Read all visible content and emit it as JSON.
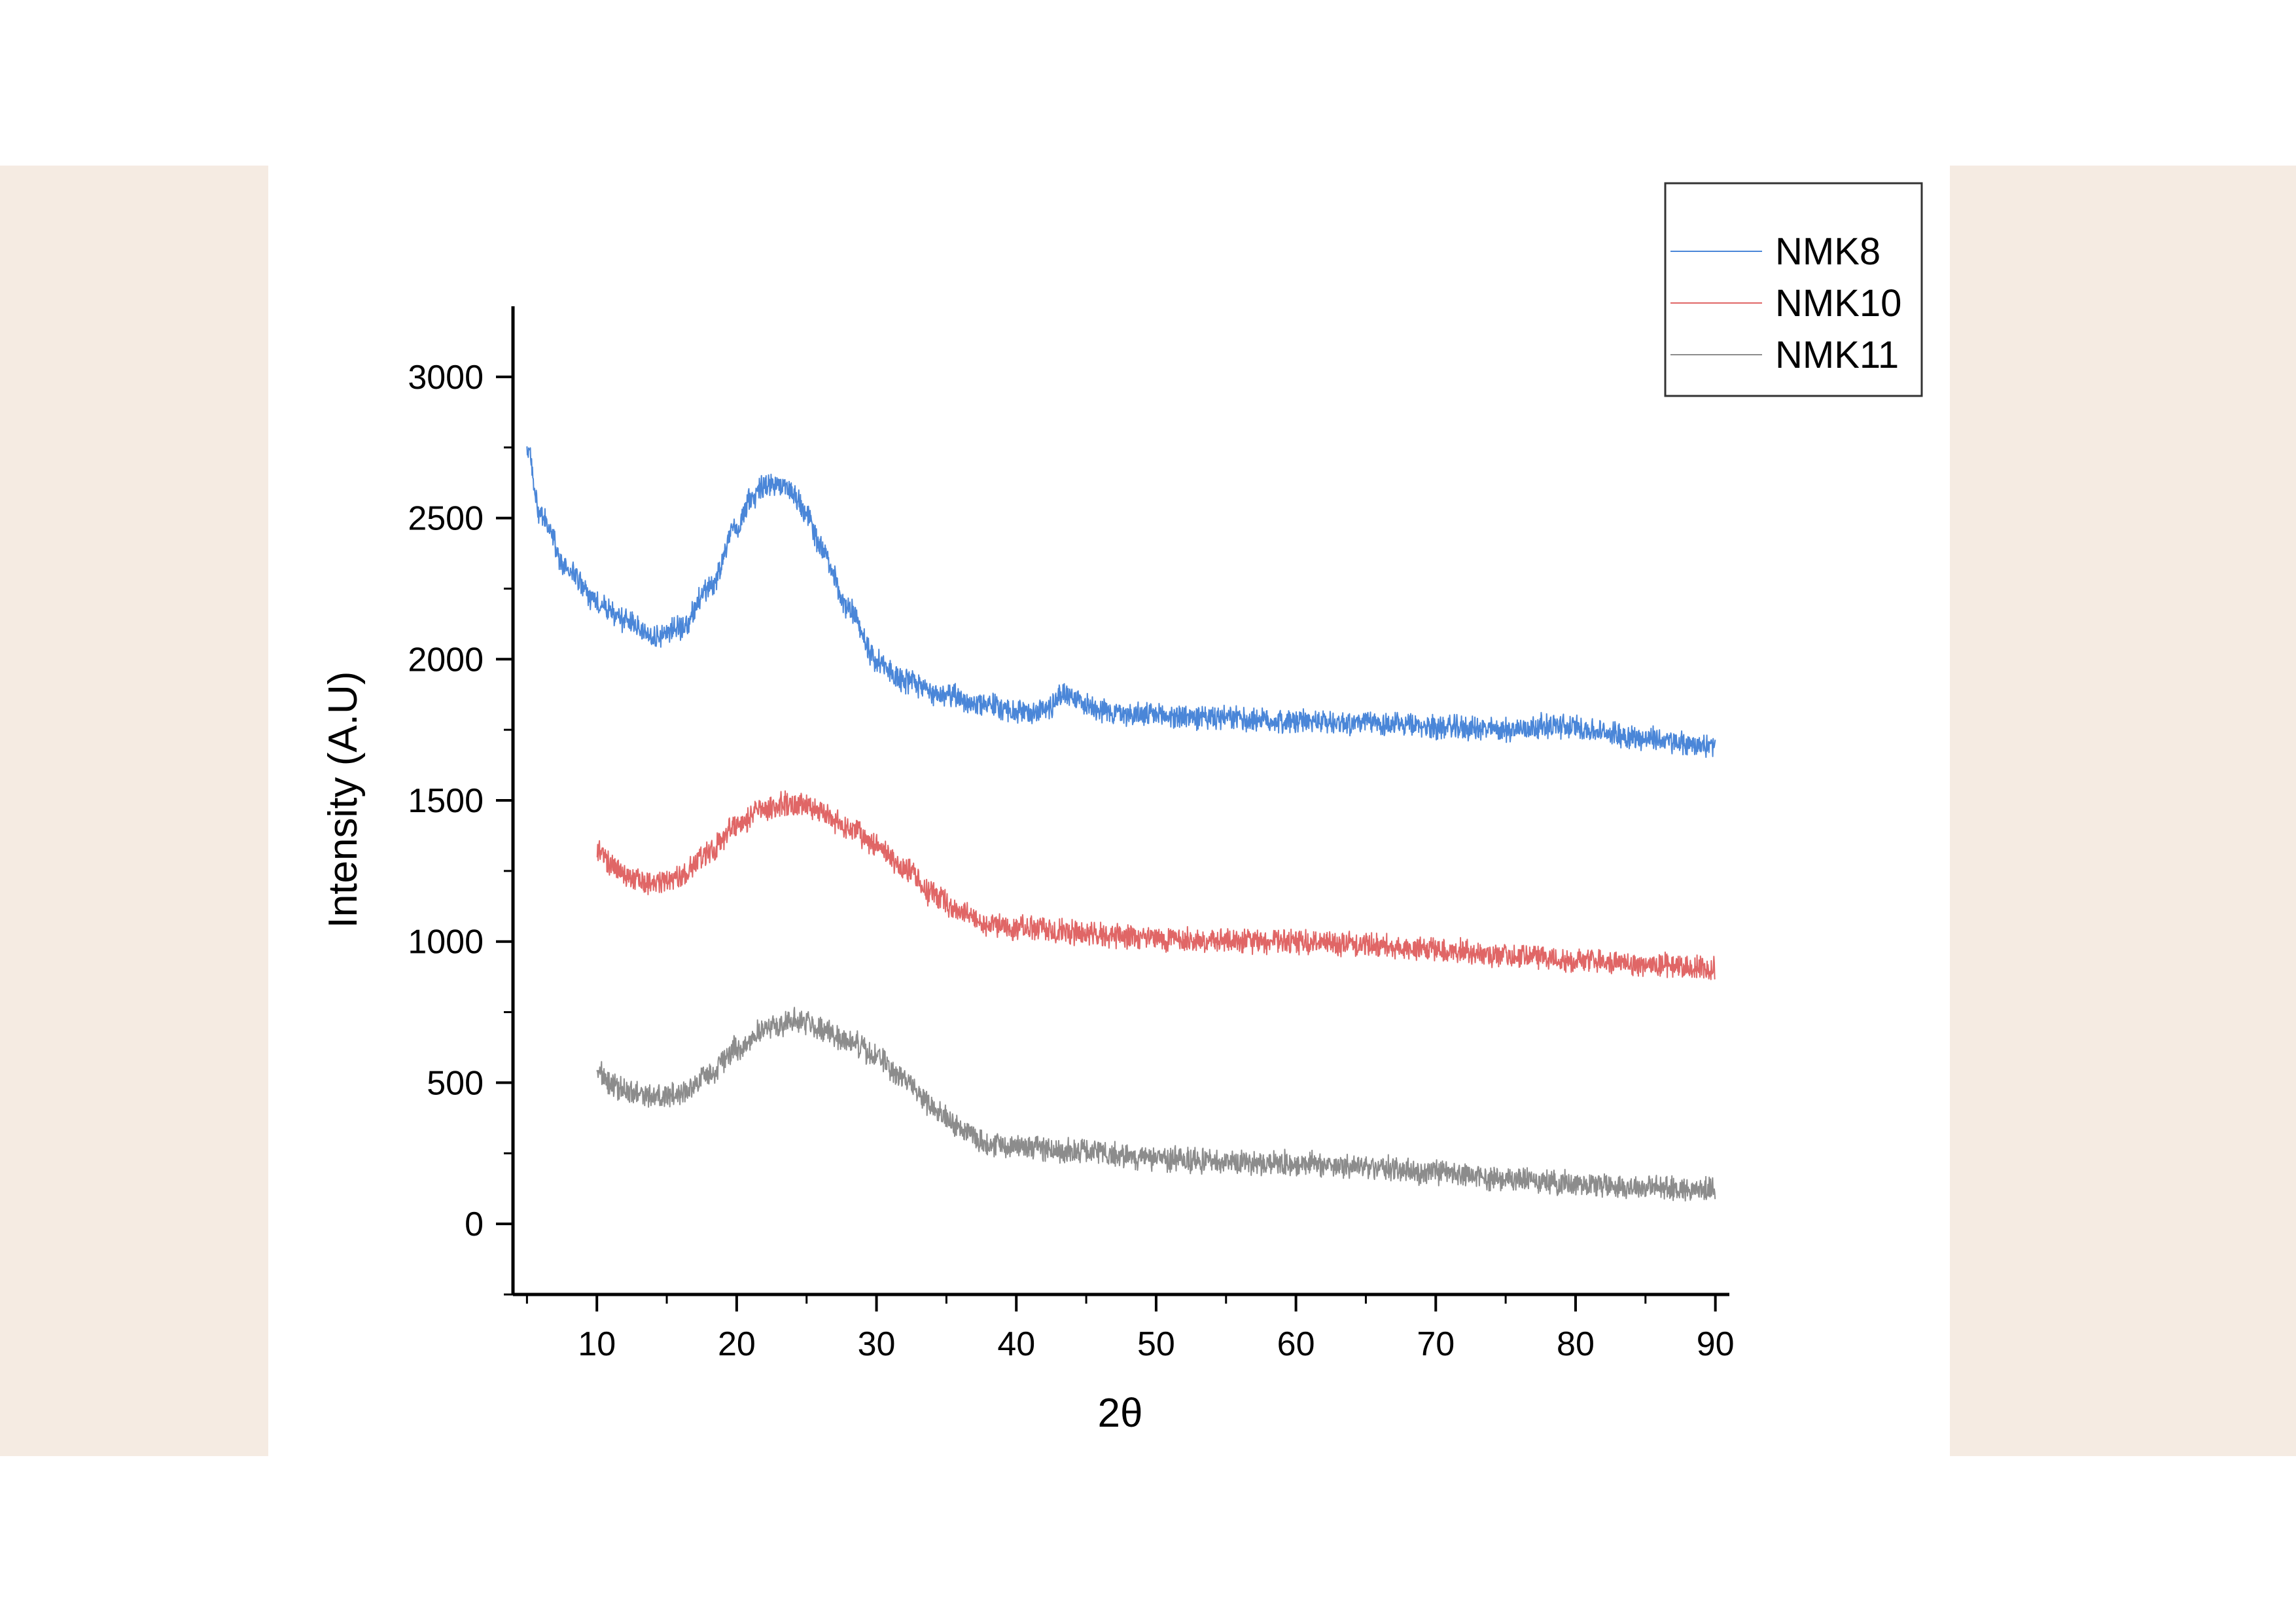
{
  "chart_data": {
    "type": "line",
    "title": "",
    "xlabel": "2θ",
    "ylabel": "Intensity (A.U)",
    "xlim": [
      4,
      91
    ],
    "ylim": [
      -250,
      3250
    ],
    "xticks": [
      10,
      20,
      30,
      40,
      50,
      60,
      70,
      80,
      90
    ],
    "yticks": [
      0,
      500,
      1000,
      1500,
      2000,
      2500,
      3000
    ],
    "grid": false,
    "legend_position": "top-right",
    "series": [
      {
        "name": "NMK8",
        "color": "#4a86d8",
        "x": [
          5,
          6,
          8,
          10,
          12,
          14,
          16,
          18,
          20,
          21,
          22,
          23,
          24,
          25,
          26,
          28,
          30,
          32,
          35,
          38,
          40,
          42,
          43.5,
          45,
          47,
          50,
          55,
          60,
          65,
          70,
          75,
          78,
          80,
          82,
          85,
          88,
          90
        ],
        "y": [
          2740,
          2500,
          2310,
          2200,
          2140,
          2080,
          2110,
          2250,
          2460,
          2570,
          2610,
          2620,
          2590,
          2510,
          2400,
          2180,
          2000,
          1920,
          1870,
          1840,
          1810,
          1820,
          1880,
          1840,
          1810,
          1800,
          1790,
          1780,
          1775,
          1760,
          1750,
          1765,
          1760,
          1740,
          1720,
          1700,
          1690
        ]
      },
      {
        "name": "NMK10",
        "color": "#e06666",
        "x": [
          10,
          11,
          12,
          14,
          16,
          18,
          20,
          22,
          24,
          25,
          26,
          28,
          30,
          32,
          34,
          36,
          38,
          40,
          45,
          50,
          55,
          60,
          65,
          70,
          75,
          80,
          85,
          90
        ],
        "y": [
          1330,
          1270,
          1240,
          1210,
          1230,
          1320,
          1410,
          1470,
          1490,
          1480,
          1460,
          1400,
          1340,
          1260,
          1170,
          1100,
          1060,
          1050,
          1030,
          1010,
          1000,
          1000,
          990,
          970,
          950,
          935,
          920,
          905
        ]
      },
      {
        "name": "NMK11",
        "color": "#8c8c8c",
        "x": [
          10,
          11,
          12,
          14,
          16,
          18,
          20,
          22,
          24,
          25,
          26,
          28,
          30,
          32,
          34,
          36,
          38,
          40,
          45,
          50,
          55,
          60,
          65,
          70,
          75,
          80,
          85,
          90
        ],
        "y": [
          540,
          500,
          470,
          450,
          460,
          530,
          620,
          690,
          720,
          715,
          690,
          650,
          590,
          510,
          420,
          340,
          285,
          275,
          255,
          230,
          220,
          215,
          200,
          180,
          160,
          145,
          130,
          120
        ]
      }
    ]
  }
}
